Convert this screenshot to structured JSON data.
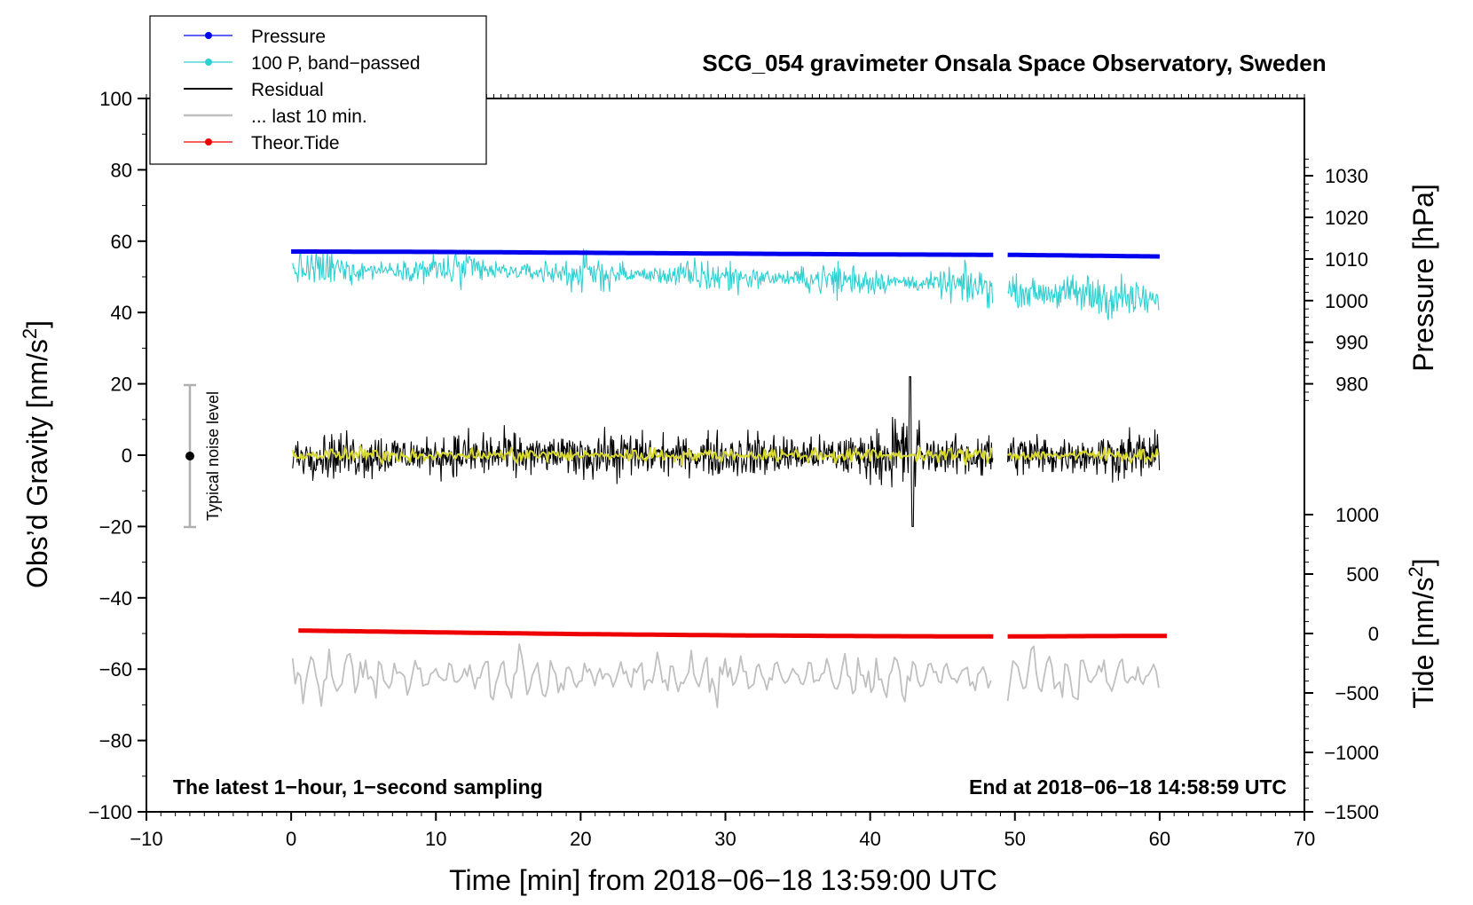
{
  "chart_data": {
    "type": "line",
    "title": "SCG_054 gravimeter Onsala Space Observatory, Sweden",
    "xlabel": "Time [min] from 2018−06−18 13:59:00 UTC",
    "ylabel_left": "Obs’d Gravity [nm/s",
    "ylabel_left_sup": "2",
    "ylabel_left_end": "]",
    "ylabel_right_pressure": "Pressure [hPa]",
    "ylabel_right_tide": "Tide [nm/s",
    "ylabel_right_tide_sup": "2",
    "ylabel_right_tide_end": "]",
    "xlim": [
      -10,
      70
    ],
    "ylim_left": [
      -100,
      100
    ],
    "pressure_scale_hPa": [
      980,
      1030
    ],
    "tide_scale_nm_s2": [
      -1500,
      1000
    ],
    "x_ticks": [
      {
        "v": -10,
        "label": "−10"
      },
      {
        "v": 0,
        "label": "0"
      },
      {
        "v": 10,
        "label": "10"
      },
      {
        "v": 20,
        "label": "20"
      },
      {
        "v": 30,
        "label": "30"
      },
      {
        "v": 40,
        "label": "40"
      },
      {
        "v": 50,
        "label": "50"
      },
      {
        "v": 60,
        "label": "60"
      },
      {
        "v": 70,
        "label": "70"
      }
    ],
    "y_ticks_left": [
      {
        "v": 100,
        "label": "100"
      },
      {
        "v": 80,
        "label": "80"
      },
      {
        "v": 60,
        "label": "60"
      },
      {
        "v": 40,
        "label": "40"
      },
      {
        "v": 20,
        "label": "20"
      },
      {
        "v": 0,
        "label": "0"
      },
      {
        "v": -20,
        "label": "−20"
      },
      {
        "v": -40,
        "label": "−40"
      },
      {
        "v": -60,
        "label": "−60"
      },
      {
        "v": -80,
        "label": "−80"
      },
      {
        "v": -100,
        "label": "−100"
      }
    ],
    "pressure_ticks": [
      {
        "v": 1030,
        "label": "1030"
      },
      {
        "v": 1020,
        "label": "1020"
      },
      {
        "v": 1010,
        "label": "1010"
      },
      {
        "v": 1000,
        "label": "1000"
      },
      {
        "v": 990,
        "label": "990"
      },
      {
        "v": 980,
        "label": "980"
      }
    ],
    "tide_ticks": [
      {
        "v": 1000,
        "label": "1000"
      },
      {
        "v": 500,
        "label": "500"
      },
      {
        "v": 0,
        "label": "0"
      },
      {
        "v": -500,
        "label": "−500"
      },
      {
        "v": -1000,
        "label": "−1000"
      },
      {
        "v": -1500,
        "label": "−1500"
      }
    ],
    "data_gap_min": [
      48.5,
      49.5
    ],
    "series": [
      {
        "name": "Pressure",
        "color": "#0000ee",
        "units": "hPa",
        "x": [
          0,
          10,
          20,
          30,
          40,
          48.5,
          49.5,
          55,
          60
        ],
        "values": [
          1011.8,
          1011.7,
          1011.5,
          1011.3,
          1011.1,
          1011.0,
          1011.0,
          1010.8,
          1010.6
        ]
      },
      {
        "name": "100 P, band−passed",
        "color": "#30d0d0",
        "units": "nm/s2 (plotted offset)",
        "x": [
          0,
          10,
          20,
          30,
          40,
          48.5,
          49.5,
          55,
          60
        ],
        "values": [
          52,
          52,
          51,
          50,
          49,
          47,
          46,
          45,
          43
        ]
      },
      {
        "name": "Residual",
        "color": "#000000",
        "units": "nm/s2",
        "x": [
          0,
          10,
          20,
          30,
          40,
          42.7,
          48.5,
          49.5,
          55,
          60
        ],
        "values": [
          0,
          0,
          0,
          0,
          0,
          0,
          0,
          0,
          0,
          0
        ]
      },
      {
        "name": "... last 10 min.",
        "color": "#c0c0c0",
        "units": "nm/s2 (plotted offset)",
        "x": [
          0,
          10,
          20,
          30,
          40,
          48.5,
          49.5,
          55,
          60
        ],
        "values": [
          -62,
          -62,
          -62,
          -62,
          -62,
          -62,
          -62,
          -62,
          -62
        ]
      },
      {
        "name": "Theor.Tide",
        "color": "#ee0000",
        "units": "nm/s2",
        "x": [
          0.5,
          10,
          20,
          30,
          40,
          48.5,
          49.5,
          55,
          60.5
        ],
        "values": [
          25,
          10,
          -5,
          -15,
          -22,
          -25,
          -25,
          -22,
          -20
        ]
      }
    ],
    "overlay": {
      "name": "smoothed residual",
      "color": "#d8d830"
    },
    "noise_level": {
      "label": "Typical noise level",
      "x": -7,
      "center": 0,
      "range": [
        -20,
        20
      ]
    },
    "annotations": {
      "left": "The latest 1−hour, 1−second sampling",
      "right": "End at 2018−06−18 14:58:59 UTC"
    },
    "legend_placement": "top-left, outside plot frame"
  }
}
